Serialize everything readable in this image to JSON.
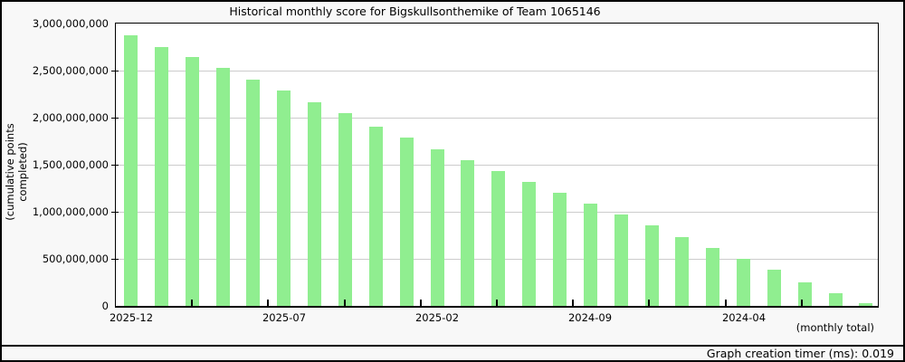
{
  "footer": {
    "timer_text": "Graph creation timer (ms): 0.019"
  },
  "chart_data": {
    "type": "bar",
    "title": "Historical monthly score for Bigskullsonthemike of Team 1065146",
    "ylabel": "(cumulative points completed)",
    "xlabel": "(monthly total)",
    "ylim": [
      0,
      3000000000
    ],
    "ytick_step": 500000000,
    "ytick_labels": [
      "0",
      "500,000,000",
      "1,000,000,000",
      "1,500,000,000",
      "2,000,000,000",
      "2,500,000,000",
      "3,000,000,000"
    ],
    "x_label_every": 5,
    "xtick_labels_shown": [
      "2025-12",
      "2025-07",
      "2025-02",
      "2024-09",
      "2024-04"
    ],
    "grid": true,
    "legend_position": "none",
    "categories": [
      "2025-12",
      "2025-11",
      "2025-10",
      "2025-09",
      "2025-08",
      "2025-07",
      "2025-06",
      "2025-05",
      "2025-04",
      "2025-03",
      "2025-02",
      "2025-01",
      "2024-12",
      "2024-11",
      "2024-10",
      "2024-09",
      "2024-08",
      "2024-07",
      "2024-06",
      "2024-05",
      "2024-04",
      "2024-03",
      "2024-02",
      "2024-01",
      "2023-12"
    ],
    "values": [
      2880000000,
      2755000000,
      2640000000,
      2525000000,
      2400000000,
      2285000000,
      2165000000,
      2045000000,
      1900000000,
      1785000000,
      1665000000,
      1545000000,
      1430000000,
      1320000000,
      1205000000,
      1090000000,
      972000000,
      855000000,
      728000000,
      618000000,
      500000000,
      385000000,
      248000000,
      132000000,
      25000000
    ],
    "colors": {
      "bar": "#90ee90",
      "grid": "#cccccc",
      "axis": "#000000",
      "background": "#f8f8f8",
      "plot_background": "#ffffff"
    }
  }
}
